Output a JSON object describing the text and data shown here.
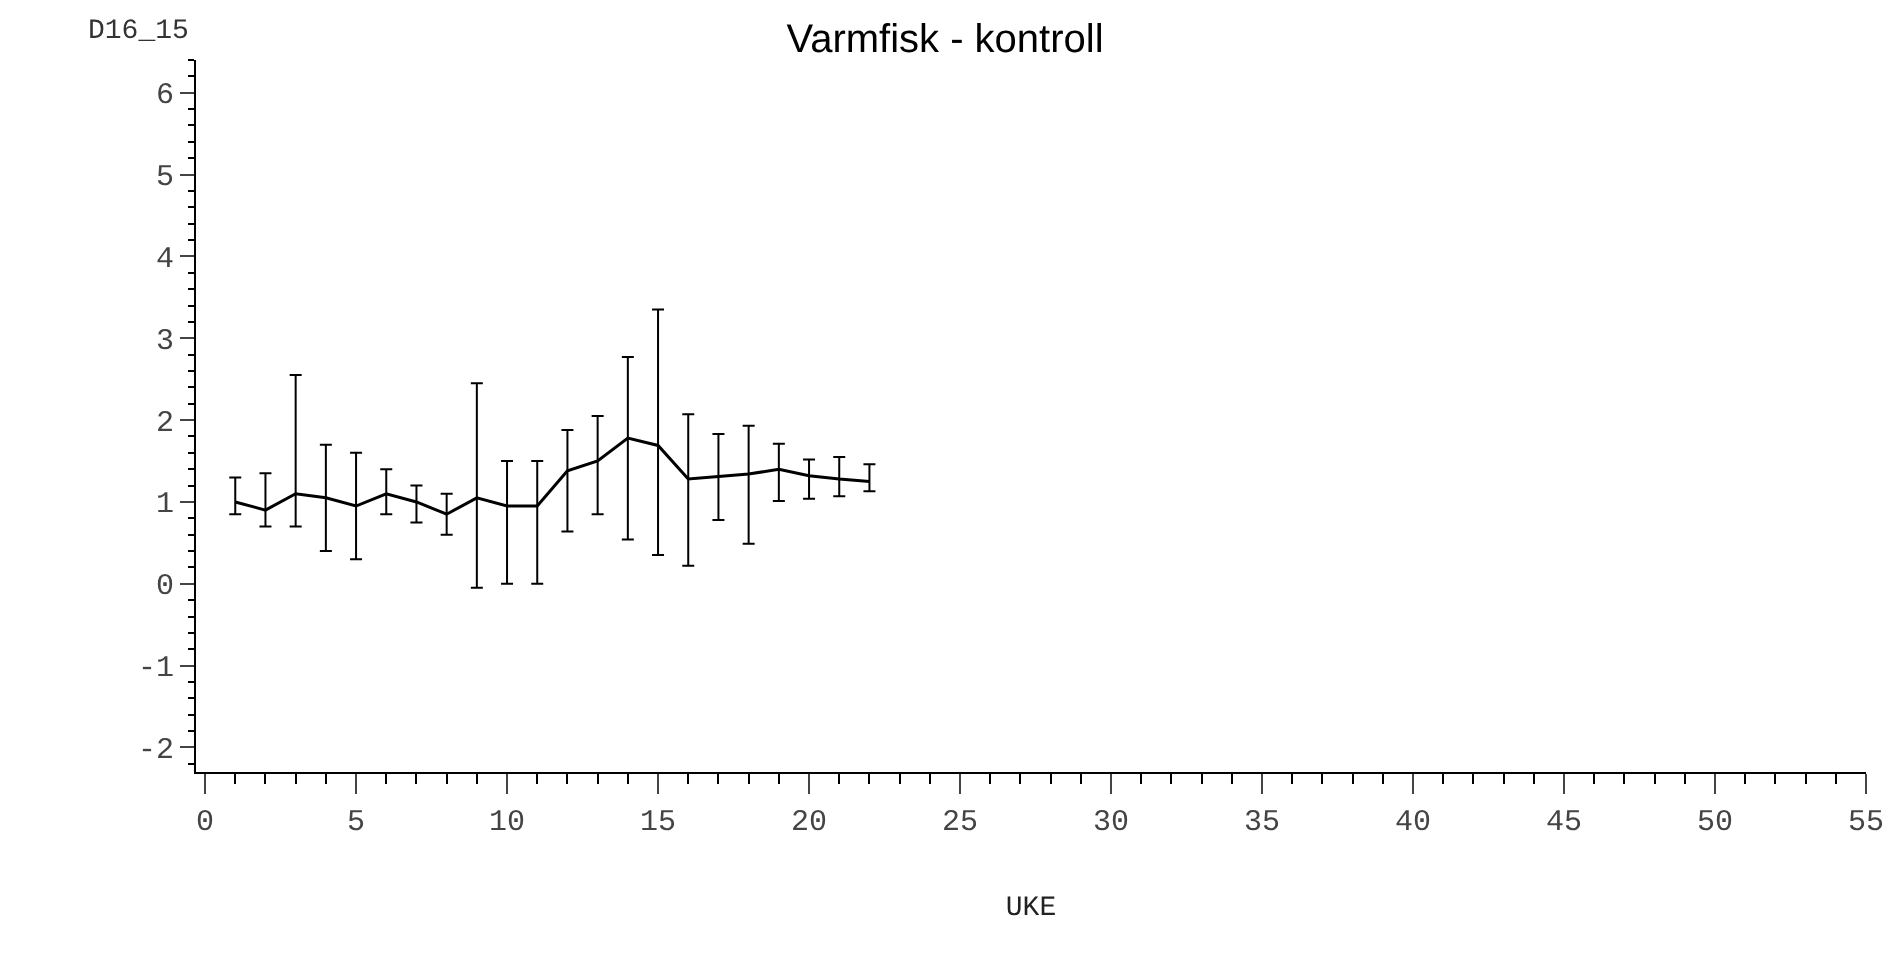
{
  "chart_data": {
    "type": "line",
    "title": "Varmfisk - kontroll",
    "xlabel": "UKE",
    "ylabel": "D16_15",
    "x": [
      1,
      2,
      3,
      4,
      5,
      6,
      7,
      8,
      9,
      10,
      11,
      12,
      13,
      14,
      15,
      16,
      17,
      18,
      19,
      20,
      21,
      22
    ],
    "series": [
      {
        "color": "#000000",
        "values": [
          1.0,
          0.9,
          1.1,
          1.05,
          0.95,
          1.1,
          1.0,
          0.85,
          1.05,
          0.95,
          0.95,
          1.38,
          1.5,
          1.78,
          1.69,
          1.28,
          1.31,
          1.34,
          1.4,
          1.32,
          1.28,
          1.25
        ],
        "errors": [
          [
            0.85,
            1.3
          ],
          [
            0.7,
            1.35
          ],
          [
            0.7,
            2.55
          ],
          [
            0.4,
            1.7
          ],
          [
            0.3,
            1.6
          ],
          [
            0.85,
            1.4
          ],
          [
            0.75,
            1.2
          ],
          [
            0.6,
            1.1
          ],
          [
            -0.05,
            2.45
          ],
          [
            0.0,
            1.5
          ],
          [
            0.0,
            1.5
          ],
          [
            0.64,
            1.88
          ],
          [
            0.85,
            2.05
          ],
          [
            0.54,
            2.77
          ],
          [
            0.35,
            3.35
          ],
          [
            0.22,
            2.07
          ],
          [
            0.78,
            1.83
          ],
          [
            0.49,
            1.93
          ],
          [
            1.01,
            1.71
          ],
          [
            1.04,
            1.52
          ],
          [
            1.07,
            1.55
          ],
          [
            1.13,
            1.46
          ]
        ]
      }
    ],
    "xlim": [
      -0.3,
      55
    ],
    "xticks": [
      0,
      5,
      10,
      15,
      20,
      25,
      30,
      35,
      40,
      45,
      50,
      55
    ],
    "ylim": [
      -2.3,
      6.4
    ],
    "yticks": [
      -2,
      -1,
      0,
      1,
      2,
      3,
      4,
      5,
      6
    ],
    "grid": false,
    "marker": "none",
    "line_style": "solid"
  }
}
